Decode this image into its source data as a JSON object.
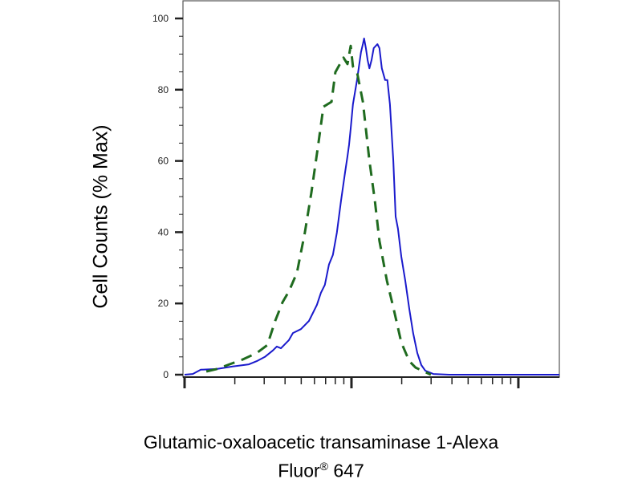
{
  "chart_data": {
    "type": "line",
    "title": "",
    "ylabel": "Cell Counts (% Max)",
    "xlabel_line1": "Glutamic-oxaloacetic transaminase 1-Alexa",
    "xlabel_line2_main": "Fluor",
    "xlabel_line2_sup": "®",
    "xlabel_line2_end": " 647",
    "x_scale": "log",
    "xlim": [
      1,
      176
    ],
    "x_tick_labels": [],
    "ylim": [
      0,
      100
    ],
    "y_ticks": [
      0,
      20,
      40,
      60,
      80,
      100
    ],
    "y_tick_labels": [
      "0",
      "20",
      "40",
      "60",
      "80",
      "100"
    ],
    "grid": false,
    "legend": "none",
    "series": [
      {
        "color": "#1a1acc",
        "style": "solid",
        "x": [
          1,
          1.12,
          1.25,
          1.56,
          1.94,
          2.43,
          2.71,
          3.03,
          3.38,
          3.57,
          3.78,
          4.22,
          4.46,
          4.98,
          5.56,
          6.21,
          6.56,
          6.93,
          7.33,
          7.74,
          8.18,
          8.66,
          9.16,
          9.46,
          9.68,
          9.89,
          10.2,
          10.8,
          11.4,
          11.7,
          11.9,
          12.2,
          12.5,
          12.8,
          13.2,
          13.6,
          14.3,
          14.7,
          15.2,
          15.9,
          16.4,
          17.0,
          17.8,
          18.4,
          19.0,
          19.9,
          21.0,
          22.2,
          23.4,
          24.8,
          26.2,
          27.7,
          30.9,
          38.6,
          48.2,
          176
        ],
        "y": [
          0,
          0.2,
          1.4,
          1.6,
          2.3,
          2.9,
          3.8,
          5.0,
          6.8,
          7.9,
          7.4,
          9.7,
          11.7,
          12.8,
          15.1,
          19.6,
          23.0,
          25.2,
          30.9,
          33.6,
          39.9,
          48.9,
          56.8,
          61.3,
          64.6,
          69.1,
          75.9,
          82.7,
          90.5,
          92.8,
          94.4,
          91.7,
          88.3,
          86.0,
          88.3,
          91.7,
          92.8,
          91.7,
          86.0,
          82.7,
          82.7,
          75.9,
          60.1,
          44.4,
          41.0,
          33.1,
          26.4,
          18.5,
          11.7,
          6.1,
          2.7,
          1.1,
          0.2,
          0,
          0,
          0
        ]
      },
      {
        "color": "#1f6b1f",
        "style": "dashed",
        "x": [
          1.35,
          1.56,
          2.24,
          2.71,
          3.13,
          3.49,
          3.86,
          4.22,
          4.71,
          5.26,
          5.75,
          6.35,
          6.79,
          7.59,
          8.01,
          8.95,
          9.46,
          9.89,
          10.2,
          10.8,
          11.7,
          12.8,
          13.8,
          14.7,
          16.3,
          17.8,
          19.9,
          22.2,
          24.2,
          29.9
        ],
        "y": [
          0.9,
          1.6,
          4.3,
          6.1,
          8.3,
          15.1,
          20.3,
          23.4,
          28.6,
          39.9,
          51.1,
          65.3,
          75.2,
          76.6,
          84.9,
          89.0,
          87.2,
          92.3,
          86.5,
          84.9,
          76.6,
          60.1,
          48.9,
          37.6,
          26.4,
          18.9,
          9.0,
          3.8,
          2.0,
          0
        ]
      }
    ]
  }
}
